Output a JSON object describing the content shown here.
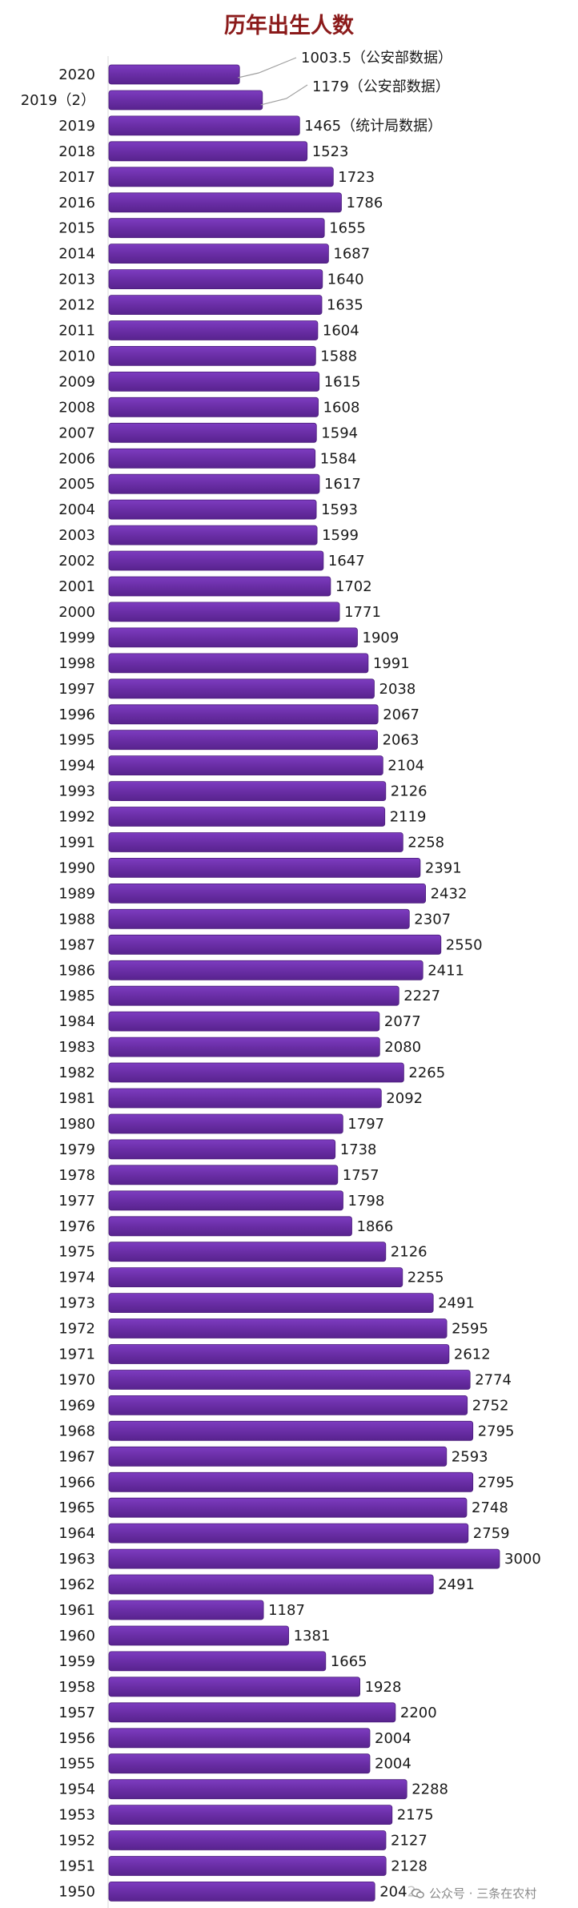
{
  "chart_data": {
    "type": "bar",
    "orientation": "horizontal",
    "title": "历年出生人数",
    "categories": [
      "2020",
      "2019（2）",
      "2019",
      "2018",
      "2017",
      "2016",
      "2015",
      "2014",
      "2013",
      "2012",
      "2011",
      "2010",
      "2009",
      "2008",
      "2007",
      "2006",
      "2005",
      "2004",
      "2003",
      "2002",
      "2001",
      "2000",
      "1999",
      "1998",
      "1997",
      "1996",
      "1995",
      "1994",
      "1993",
      "1992",
      "1991",
      "1990",
      "1989",
      "1988",
      "1987",
      "1986",
      "1985",
      "1984",
      "1983",
      "1982",
      "1981",
      "1980",
      "1979",
      "1978",
      "1977",
      "1976",
      "1975",
      "1974",
      "1973",
      "1972",
      "1971",
      "1970",
      "1969",
      "1968",
      "1967",
      "1966",
      "1965",
      "1964",
      "1963",
      "1962",
      "1961",
      "1960",
      "1959",
      "1958",
      "1957",
      "1956",
      "1955",
      "1954",
      "1953",
      "1952",
      "1951",
      "1950"
    ],
    "values": [
      1003.5,
      1179,
      1465,
      1523,
      1723,
      1786,
      1655,
      1687,
      1640,
      1635,
      1604,
      1588,
      1615,
      1608,
      1594,
      1584,
      1617,
      1593,
      1599,
      1647,
      1702,
      1771,
      1909,
      1991,
      2038,
      2067,
      2063,
      2104,
      2126,
      2119,
      2258,
      2391,
      2432,
      2307,
      2550,
      2411,
      2227,
      2077,
      2080,
      2265,
      2092,
      1797,
      1738,
      1757,
      1798,
      1866,
      2126,
      2255,
      2491,
      2595,
      2612,
      2774,
      2752,
      2795,
      2593,
      2795,
      2748,
      2759,
      3000,
      2491,
      1187,
      1381,
      1665,
      1928,
      2200,
      2004,
      2004,
      2288,
      2175,
      2127,
      2128,
      2042
    ],
    "value_labels": [
      "1003.5（公安部数据）",
      "1179（公安部数据）",
      "1465（统计局数据）",
      "1523",
      "1723",
      "1786",
      "1655",
      "1687",
      "1640",
      "1635",
      "1604",
      "1588",
      "1615",
      "1608",
      "1594",
      "1584",
      "1617",
      "1593",
      "1599",
      "1647",
      "1702",
      "1771",
      "1909",
      "1991",
      "2038",
      "2067",
      "2063",
      "2104",
      "2126",
      "2119",
      "2258",
      "2391",
      "2432",
      "2307",
      "2550",
      "2411",
      "2227",
      "2077",
      "2080",
      "2265",
      "2092",
      "1797",
      "1738",
      "1757",
      "1798",
      "1866",
      "2126",
      "2255",
      "2491",
      "2595",
      "2612",
      "2774",
      "2752",
      "2795",
      "2593",
      "2795",
      "2748",
      "2759",
      "3000",
      "2491",
      "1187",
      "1381",
      "1665",
      "1928",
      "2200",
      "2004",
      "2004",
      "2288",
      "2175",
      "2127",
      "2128",
      "2042"
    ],
    "xlim": [
      0,
      3000
    ],
    "grid": false,
    "legend": "none",
    "bar_color": "#6b2fa8",
    "bar_edge_color": "#4a1d7a",
    "callout_line_color": "#a0a0a0"
  },
  "watermark": {
    "icon": "wechat-icon",
    "text": "公众号 · 三条在农村",
    "color": "#8a8a8a"
  }
}
